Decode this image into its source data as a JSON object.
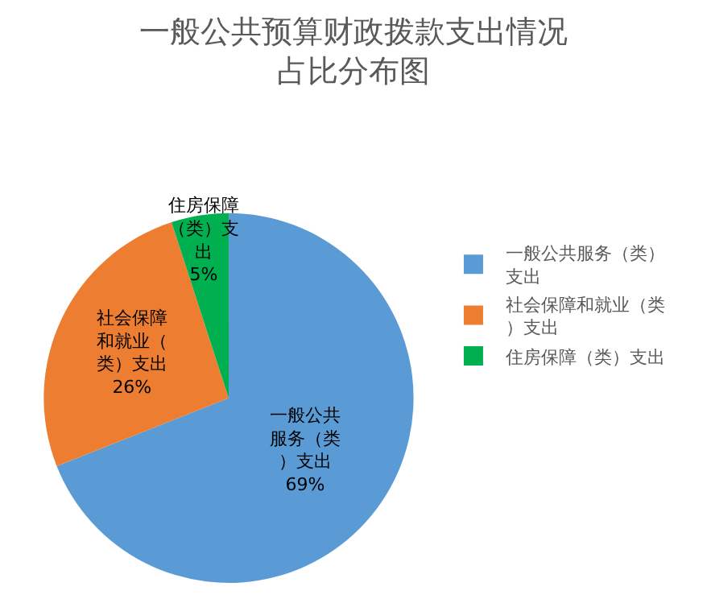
{
  "chart_data": {
    "type": "pie",
    "title": "一般公共预算财政拨款支出情况占比分布图",
    "categories": [
      "一般公共服务（类）支出",
      "社会保障和就业（类）支出",
      "住房保障（类）支出"
    ],
    "values": [
      69,
      26,
      5
    ],
    "colors": [
      "#5b9bd5",
      "#ed7d31",
      "#00b050"
    ],
    "value_labels": [
      "69%",
      "26%",
      "5%"
    ],
    "legend": "right"
  }
}
